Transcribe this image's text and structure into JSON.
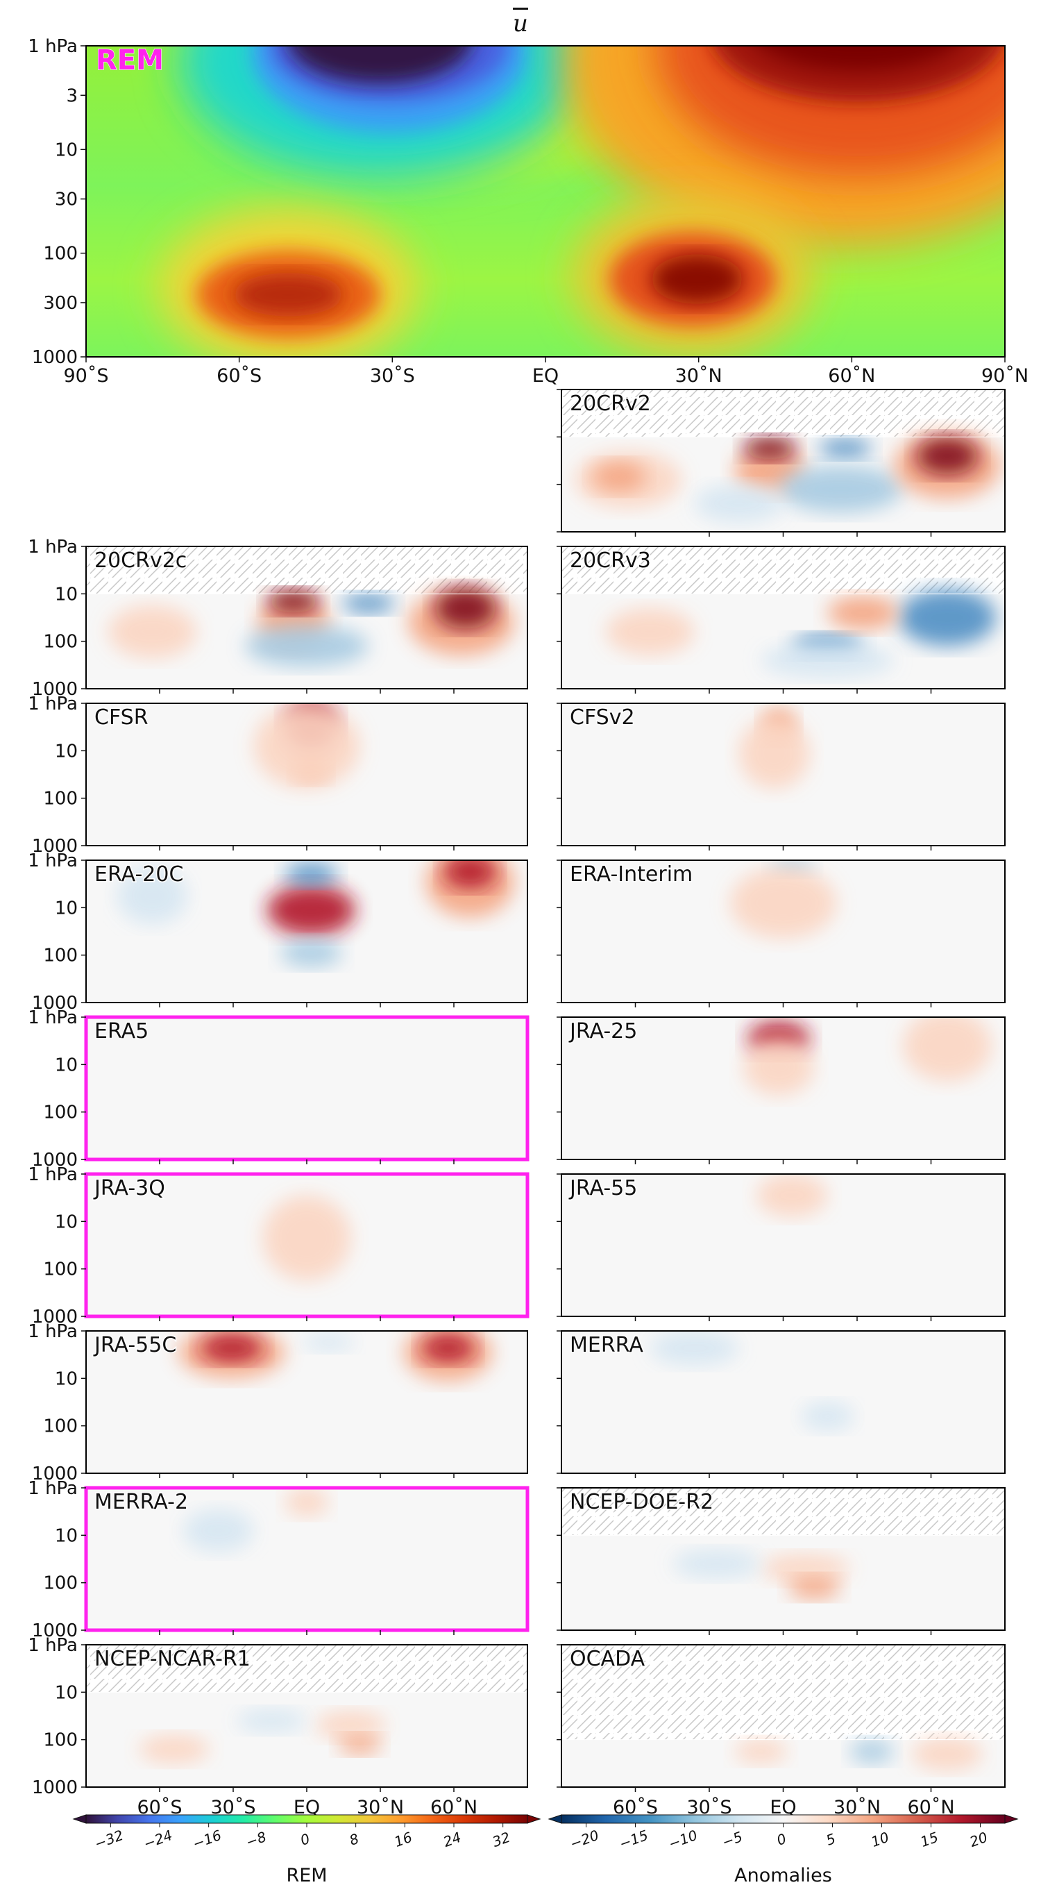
{
  "figure": {
    "title": "u",
    "rem_panel_label": "REM",
    "colors": {
      "highlight": "#ff22ee",
      "hatch": "#c8c8c8",
      "frame": "#000000"
    }
  },
  "chart_data": {
    "type": "heatmap",
    "variable": "u",
    "pressure_ticks": [
      "1 hPa",
      "3",
      "10",
      "30",
      "100",
      "300",
      "1000"
    ],
    "pressure_ticks_small": [
      "1 hPa",
      "10",
      "100",
      "1000"
    ],
    "lat_ticks": [
      "90˚S",
      "60˚S",
      "30˚S",
      "EQ",
      "30˚N",
      "60˚N",
      "90˚N"
    ],
    "lat_ticks_inner": [
      "60˚S",
      "30˚S",
      "EQ",
      "30˚N",
      "60˚N"
    ],
    "rem_field": {
      "label": "REM",
      "features": [
        {
          "lat": -30,
          "p": 2,
          "value": -32
        },
        {
          "lat": 48,
          "p": 1.5,
          "value": 32
        },
        {
          "lat": -48,
          "p": 220,
          "value": 28
        },
        {
          "lat": 30,
          "p": 200,
          "value": 32
        }
      ]
    },
    "panels": [
      {
        "name": "20CRv2",
        "column": "right",
        "row": 0,
        "top_hpa": 10,
        "highlight": false
      },
      {
        "name": "20CRv2c",
        "column": "left",
        "row": 1,
        "top_hpa": 10,
        "highlight": false
      },
      {
        "name": "20CRv3",
        "column": "right",
        "row": 1,
        "top_hpa": 10,
        "highlight": false
      },
      {
        "name": "CFSR",
        "column": "left",
        "row": 2,
        "top_hpa": 1,
        "highlight": false
      },
      {
        "name": "CFSv2",
        "column": "right",
        "row": 2,
        "top_hpa": 1,
        "highlight": false
      },
      {
        "name": "ERA-20C",
        "column": "left",
        "row": 3,
        "top_hpa": 1,
        "highlight": false
      },
      {
        "name": "ERA-Interim",
        "column": "right",
        "row": 3,
        "top_hpa": 1,
        "highlight": false
      },
      {
        "name": "ERA5",
        "column": "left",
        "row": 4,
        "top_hpa": 1,
        "highlight": true
      },
      {
        "name": "JRA-25",
        "column": "right",
        "row": 4,
        "top_hpa": 1,
        "highlight": false
      },
      {
        "name": "JRA-3Q",
        "column": "left",
        "row": 5,
        "top_hpa": 1,
        "highlight": true
      },
      {
        "name": "JRA-55",
        "column": "right",
        "row": 5,
        "top_hpa": 1,
        "highlight": false
      },
      {
        "name": "JRA-55C",
        "column": "left",
        "row": 6,
        "top_hpa": 1,
        "highlight": false
      },
      {
        "name": "MERRA",
        "column": "right",
        "row": 6,
        "top_hpa": 1,
        "highlight": false
      },
      {
        "name": "MERRA-2",
        "column": "left",
        "row": 7,
        "top_hpa": 1,
        "highlight": true
      },
      {
        "name": "NCEP-DOE-R2",
        "column": "right",
        "row": 7,
        "top_hpa": 10,
        "highlight": false
      },
      {
        "name": "NCEP-NCAR-R1",
        "column": "left",
        "row": 8,
        "top_hpa": 10,
        "highlight": false
      },
      {
        "name": "OCADA",
        "column": "right",
        "row": 8,
        "top_hpa": 100,
        "highlight": false
      }
    ],
    "colorbars": [
      {
        "label": "REM",
        "cmap": "turbo",
        "ticks": [
          "−32",
          "−24",
          "−16",
          "−8",
          "0",
          "8",
          "16",
          "24",
          "32"
        ]
      },
      {
        "label": "Anomalies",
        "cmap": "RdBu_r",
        "ticks": [
          "−20",
          "−15",
          "−10",
          "−5",
          "0",
          "5",
          "10",
          "15",
          "20"
        ]
      }
    ]
  }
}
